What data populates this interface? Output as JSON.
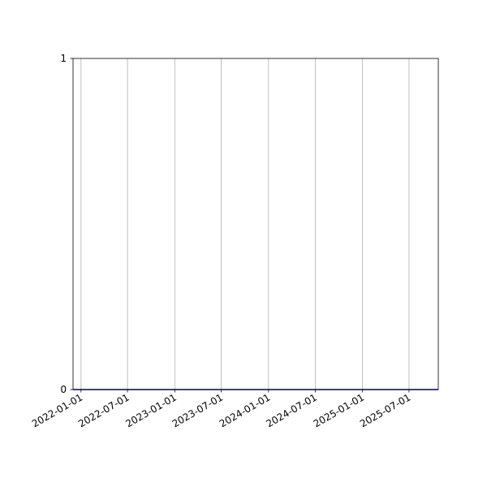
{
  "chart_data": {
    "type": "line",
    "title": "",
    "xlabel": "",
    "ylabel": "",
    "x_type": "date",
    "xlim": [
      "2021-12-01",
      "2025-10-23"
    ],
    "ylim": [
      0,
      1
    ],
    "x_ticks": [
      "2022-01-01",
      "2022-07-01",
      "2023-01-01",
      "2023-07-01",
      "2024-01-01",
      "2024-07-01",
      "2025-01-01",
      "2025-07-01"
    ],
    "y_ticks": [
      0,
      1
    ],
    "grid": {
      "x": true,
      "y": false
    },
    "series": [
      {
        "x": [
          "2021-12-01",
          "2025-10-23"
        ],
        "y": [
          0,
          0
        ],
        "color": "#0000cc"
      }
    ],
    "colors": {
      "grid": "#b0b0b0",
      "axis": "#000000"
    }
  }
}
